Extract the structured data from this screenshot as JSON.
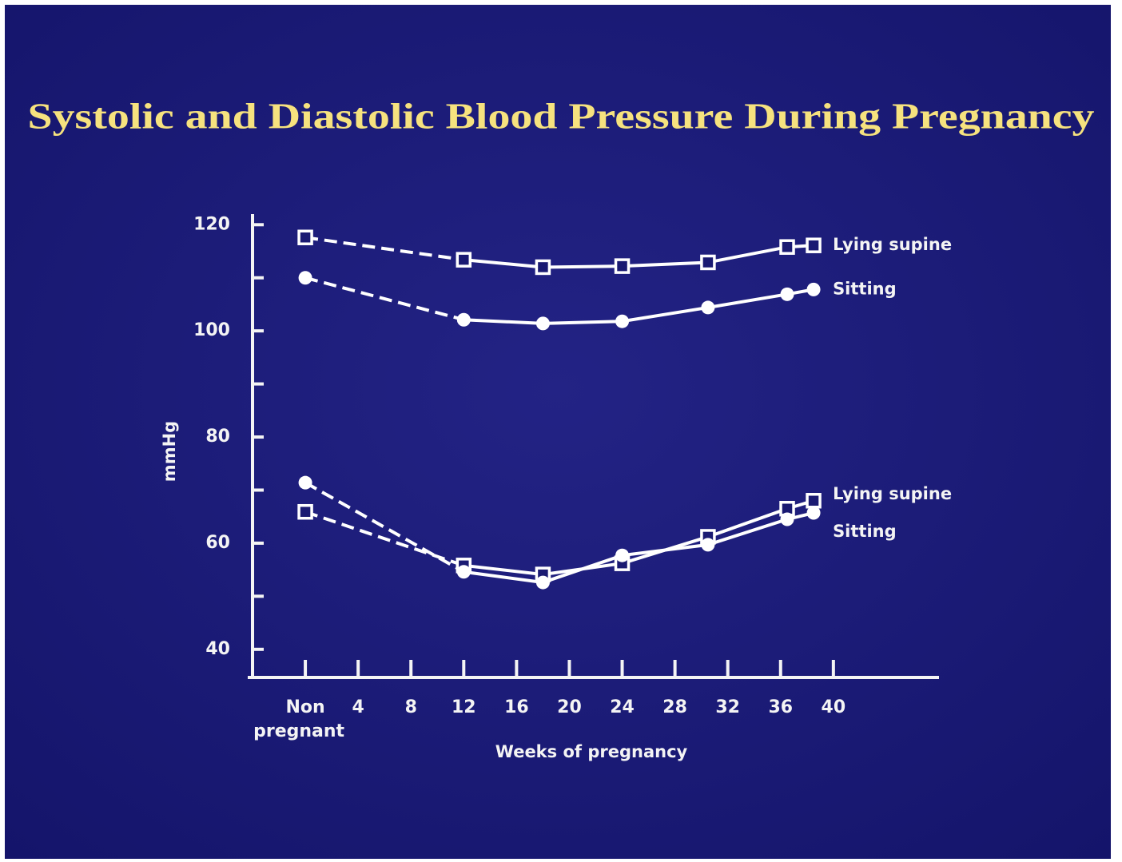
{
  "chart_data": {
    "type": "line",
    "title": "Systolic and Diastolic Blood Pressure During Pregnancy",
    "xlabel": "Weeks of pregnancy",
    "ylabel": "mmHg",
    "xlim": [
      -4,
      48
    ],
    "ylim": [
      34.7,
      122
    ],
    "xticks": [
      {
        "value": 0,
        "label": "Non pregnant"
      },
      4,
      8,
      12,
      16,
      20,
      24,
      28,
      32,
      36,
      40
    ],
    "yticks": [
      40,
      60,
      80,
      100,
      120
    ],
    "yminorticks": [
      50,
      70,
      90,
      110
    ],
    "x": [
      0,
      12,
      18,
      24,
      30.5,
      36.5,
      38.5
    ],
    "series": [
      {
        "name": "Lying supine",
        "color": "#ffffff",
        "marker": "square",
        "values": [
          117.6,
          113.4,
          112,
          112.2,
          112.9,
          115.8,
          116.1
        ]
      },
      {
        "name": "Sitting",
        "color": "#ffffff",
        "marker": "circle",
        "values": [
          110,
          102.1,
          101.4,
          101.8,
          104.4,
          106.9,
          107.8
        ]
      },
      {
        "name": "Lying supine",
        "color": "#ffffff",
        "marker": "square",
        "values": [
          65.9,
          55.8,
          54.1,
          56.2,
          61.2,
          66.5,
          68.0
        ]
      },
      {
        "name": "Sitting",
        "color": "#ffffff",
        "marker": "circle",
        "values": [
          71.4,
          54.6,
          52.6,
          57.7,
          59.7,
          64.5,
          65.7
        ]
      }
    ]
  }
}
